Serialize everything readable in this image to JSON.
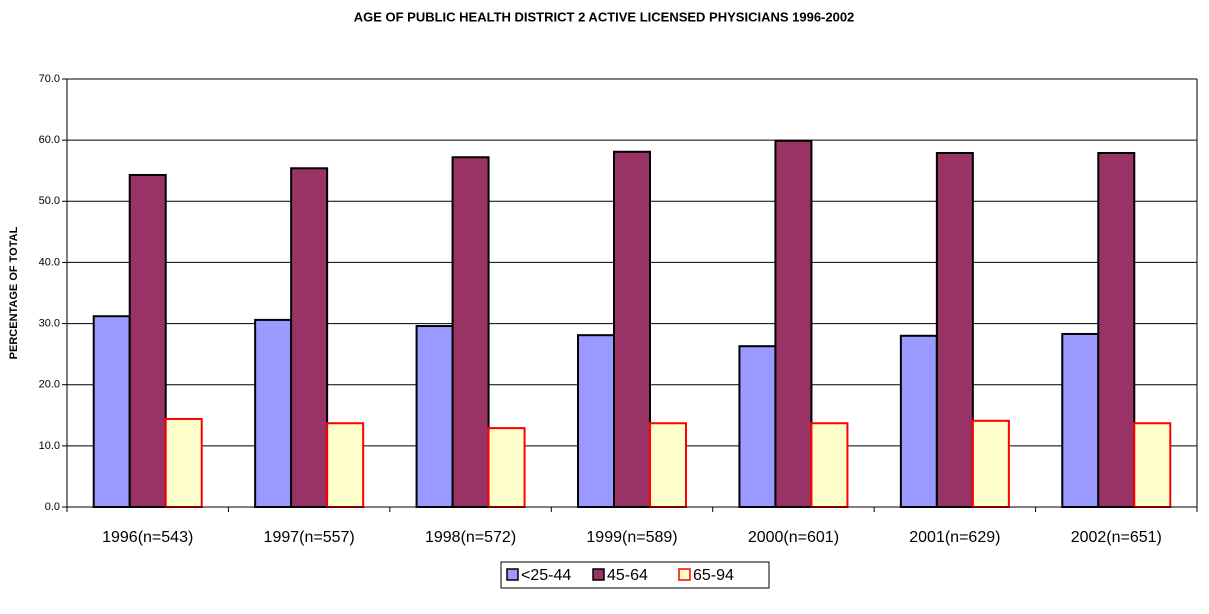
{
  "chart_data": {
    "type": "bar",
    "title": "AGE OF PUBLIC HEALTH DISTRICT 2 ACTIVE LICENSED PHYSICIANS 1996-2002",
    "y_label": "PERCENTAGE OF TOTAL",
    "categories": [
      "1996(n=543)",
      "1997(n=557)",
      "1998(n=572)",
      "1999(n=589)",
      "2000(n=601)",
      "2001(n=629)",
      "2002(n=651)"
    ],
    "series": [
      {
        "name": "<25-44",
        "color": "#9999ff",
        "edgecolor": "#000000",
        "values": [
          31.2,
          30.6,
          29.6,
          28.1,
          26.3,
          28.0,
          28.3
        ]
      },
      {
        "name": "45-64",
        "color": "#993366",
        "edgecolor": "#000000",
        "values": [
          54.3,
          55.4,
          57.2,
          58.1,
          59.9,
          57.9,
          57.9
        ]
      },
      {
        "name": "65-94",
        "color": "#ffffcc",
        "edgecolor": "#ff0000",
        "values": [
          14.4,
          13.7,
          12.9,
          13.7,
          13.7,
          14.1,
          13.7
        ]
      }
    ],
    "ylim": [
      0,
      70
    ],
    "yticks": [
      {
        "value": 0,
        "label": "0.0"
      },
      {
        "value": 10,
        "label": "10.0"
      },
      {
        "value": 20,
        "label": "20.0"
      },
      {
        "value": 30,
        "label": "30.0"
      },
      {
        "value": 40,
        "label": "40.0"
      },
      {
        "value": 50,
        "label": "50.0"
      },
      {
        "value": 60,
        "label": "60.0"
      },
      {
        "value": 70,
        "label": "70.0"
      }
    ],
    "grid": true,
    "legend": "bottom"
  }
}
